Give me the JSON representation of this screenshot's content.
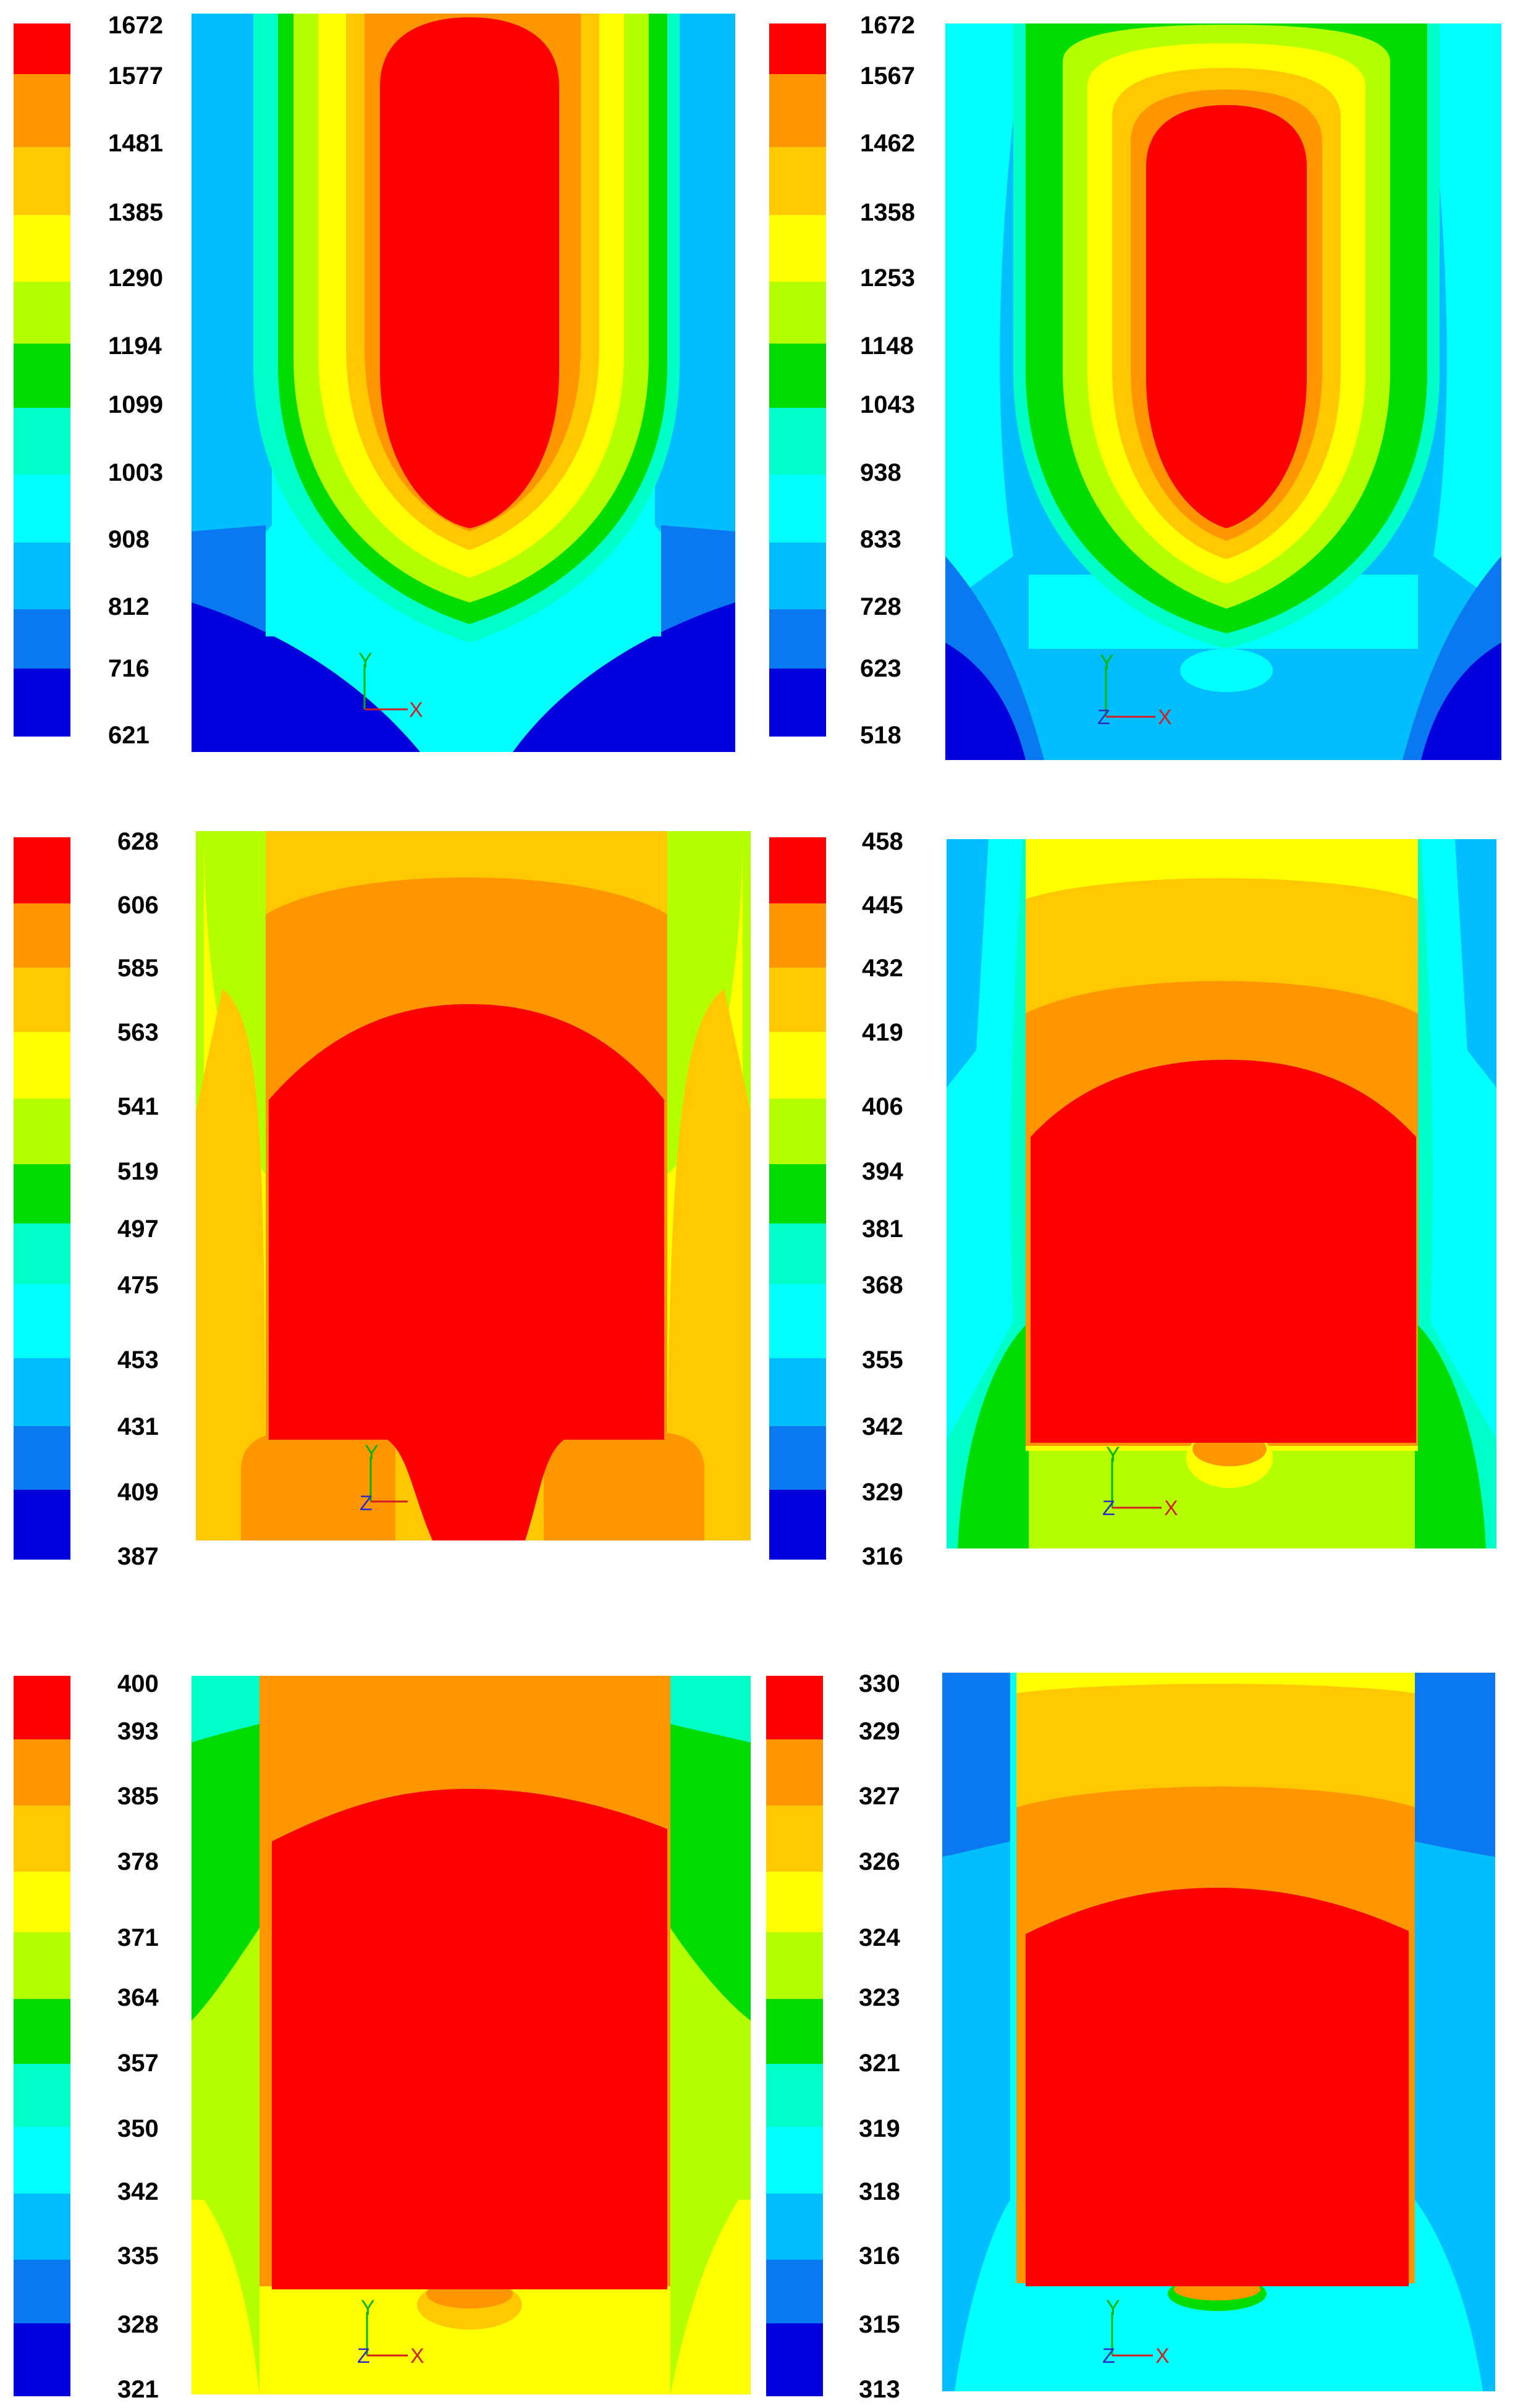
{
  "palette": [
    "#0000dc",
    "#0a78f0",
    "#00beff",
    "#00ffff",
    "#00ffc8",
    "#00dc00",
    "#b4ff00",
    "#ffff00",
    "#ffc800",
    "#ff9600",
    "#ff0000"
  ],
  "panels": [
    {
      "id": "p1",
      "shape": "ellipse",
      "legend": [
        "1672",
        "1577",
        "1481",
        "1385",
        "1290",
        "1194",
        "1099",
        "1003",
        "908",
        "812",
        "716",
        "621"
      ],
      "axes": {
        "y": "Y",
        "x": "X",
        "z": ""
      }
    },
    {
      "id": "p2",
      "shape": "ellipse",
      "legend": [
        "1672",
        "1567",
        "1462",
        "1358",
        "1253",
        "1148",
        "1043",
        "938",
        "833",
        "728",
        "623",
        "518"
      ],
      "axes": {
        "y": "Y",
        "x": "X",
        "z": "Z"
      }
    },
    {
      "id": "p3",
      "shape": "cap-neck",
      "legend": [
        "628",
        "606",
        "585",
        "563",
        "541",
        "519",
        "497",
        "475",
        "453",
        "431",
        "409",
        "387"
      ],
      "axes": {
        "y": "Y",
        "x": "",
        "z": "Z"
      }
    },
    {
      "id": "p4",
      "shape": "cap",
      "legend": [
        "458",
        "445",
        "432",
        "419",
        "406",
        "394",
        "381",
        "368",
        "355",
        "342",
        "329",
        "316"
      ],
      "axes": {
        "y": "Y",
        "x": "X",
        "z": "Z"
      }
    },
    {
      "id": "p5",
      "shape": "cap",
      "legend": [
        "400",
        "393",
        "385",
        "378",
        "371",
        "364",
        "357",
        "350",
        "342",
        "335",
        "328",
        "321"
      ],
      "axes": {
        "y": "Y",
        "x": "X",
        "z": "Z"
      }
    },
    {
      "id": "p6",
      "shape": "cap",
      "legend": [
        "330",
        "329",
        "327",
        "326",
        "324",
        "323",
        "321",
        "319",
        "318",
        "316",
        "315",
        "313"
      ],
      "axes": {
        "y": "Y",
        "x": "X",
        "z": "Z"
      }
    }
  ]
}
